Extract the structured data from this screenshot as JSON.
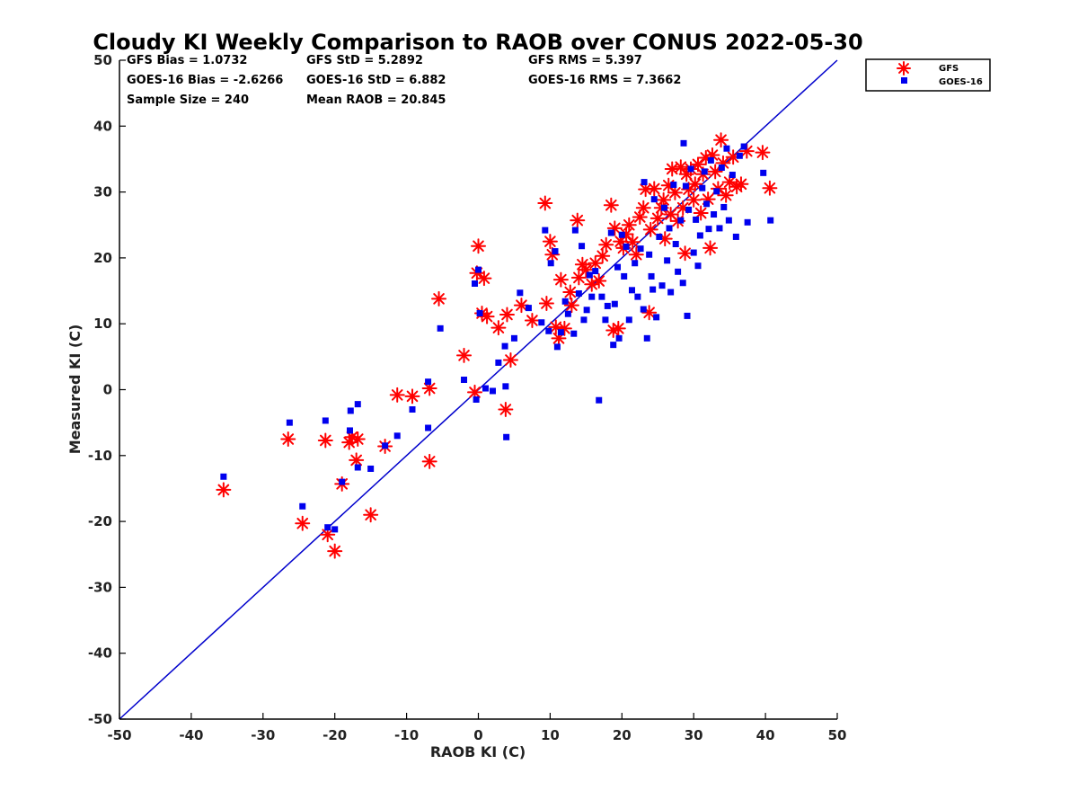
{
  "chart_data": {
    "type": "scatter",
    "title": "Cloudy KI Weekly Comparison to RAOB over CONUS 2022-05-30",
    "xlabel": "RAOB KI (C)",
    "ylabel": "Measured KI (C)",
    "xlim": [
      -50,
      50
    ],
    "ylim": [
      -50,
      50
    ],
    "xticks": [
      "-50",
      "-40",
      "-30",
      "-20",
      "-10",
      "0",
      "10",
      "20",
      "30",
      "40",
      "50"
    ],
    "yticks": [
      "50",
      "40",
      "30",
      "20",
      "10",
      "0",
      "-10",
      "-20",
      "-30",
      "-40",
      "-50"
    ],
    "grid": false,
    "legend_position": "top-right-outside",
    "reference_line": {
      "from": [
        -50,
        -50
      ],
      "to": [
        50,
        50
      ],
      "color": "#0000cc"
    },
    "stats": {
      "gfs_bias": "GFS Bias = 1.0732",
      "goes_bias": "GOES-16 Bias = -2.6266",
      "sample_size": "Sample Size = 240",
      "gfs_std": "GFS StD = 5.2892",
      "goes_std": "GOES-16 StD = 6.882",
      "mean_raob": "Mean RAOB = 20.845",
      "gfs_rms": "GFS RMS = 5.397",
      "goes_rms": "GOES-16 RMS = 7.3662"
    },
    "series": [
      {
        "name": "GFS",
        "marker": "asterisk",
        "color": "#ff0000",
        "points": [
          [
            -35.5,
            -15.2
          ],
          [
            -26.5,
            -7.5
          ],
          [
            -24.5,
            -20.3
          ],
          [
            -21.3,
            -7.7
          ],
          [
            -21,
            -22
          ],
          [
            -20,
            -24.5
          ],
          [
            -19,
            -14.3
          ],
          [
            -18,
            -8
          ],
          [
            -17.6,
            -7.2
          ],
          [
            -17,
            -10.7
          ],
          [
            -16.8,
            -7.5
          ],
          [
            -15,
            -19
          ],
          [
            -13,
            -8.6
          ],
          [
            -11.3,
            -0.8
          ],
          [
            -9.2,
            -1
          ],
          [
            -6.8,
            0.2
          ],
          [
            -6.8,
            -10.9
          ],
          [
            -5.5,
            13.8
          ],
          [
            -2,
            5.2
          ],
          [
            -0.5,
            -0.4
          ],
          [
            -0.2,
            17.7
          ],
          [
            0,
            21.8
          ],
          [
            0.5,
            11.6
          ],
          [
            0.8,
            16.9
          ],
          [
            1.2,
            11.1
          ],
          [
            2.8,
            9.4
          ],
          [
            3.8,
            -3
          ],
          [
            4,
            11.4
          ],
          [
            4.5,
            4.5
          ],
          [
            6,
            12.8
          ],
          [
            7.5,
            10.5
          ],
          [
            9.3,
            28.3
          ],
          [
            9.5,
            13.1
          ],
          [
            10,
            22.5
          ],
          [
            10.3,
            20.5
          ],
          [
            10.8,
            9.5
          ],
          [
            11.2,
            7.8
          ],
          [
            11.5,
            16.7
          ],
          [
            12,
            9.3
          ],
          [
            12.8,
            14.8
          ],
          [
            13,
            12.8
          ],
          [
            13.8,
            25.7
          ],
          [
            14,
            17
          ],
          [
            14.5,
            19
          ],
          [
            15,
            18.2
          ],
          [
            15.8,
            16
          ],
          [
            16.3,
            19.2
          ],
          [
            16.8,
            16.5
          ],
          [
            17.3,
            20.3
          ],
          [
            17.8,
            22
          ],
          [
            18.5,
            28
          ],
          [
            18.8,
            9
          ],
          [
            19,
            24.5
          ],
          [
            19.5,
            9.3
          ],
          [
            19.8,
            22.5
          ],
          [
            20.2,
            21.5
          ],
          [
            20.6,
            23.6
          ],
          [
            21,
            25
          ],
          [
            21.5,
            22.4
          ],
          [
            22,
            20.5
          ],
          [
            22.5,
            26.2
          ],
          [
            23,
            27.6
          ],
          [
            23.3,
            30.4
          ],
          [
            23.8,
            11.7
          ],
          [
            24,
            24.3
          ],
          [
            24.5,
            30.5
          ],
          [
            25,
            26
          ],
          [
            25.5,
            27.6
          ],
          [
            25.8,
            28.8
          ],
          [
            26,
            22.9
          ],
          [
            26.5,
            31
          ],
          [
            26.8,
            26.6
          ],
          [
            27,
            33.5
          ],
          [
            27.4,
            29.9
          ],
          [
            27.8,
            25.6
          ],
          [
            28.2,
            33.8
          ],
          [
            28.5,
            27.6
          ],
          [
            28.8,
            20.7
          ],
          [
            29,
            32.7
          ],
          [
            29.3,
            30.4
          ],
          [
            29.6,
            33.5
          ],
          [
            30,
            28.8
          ],
          [
            30.2,
            31.2
          ],
          [
            30.6,
            34.2
          ],
          [
            31,
            26.8
          ],
          [
            31.3,
            32.7
          ],
          [
            31.7,
            35.2
          ],
          [
            32,
            28.9
          ],
          [
            32.3,
            21.5
          ],
          [
            32.6,
            35.6
          ],
          [
            33,
            33.1
          ],
          [
            33.4,
            30.5
          ],
          [
            33.8,
            37.9
          ],
          [
            34.1,
            34.4
          ],
          [
            34.5,
            29.5
          ],
          [
            35,
            31.5
          ],
          [
            35.5,
            35.3
          ],
          [
            36,
            30.8
          ],
          [
            36.6,
            31.2
          ],
          [
            37.4,
            36.2
          ],
          [
            39.6,
            36
          ],
          [
            40.6,
            30.6
          ]
        ]
      },
      {
        "name": "GOES-16",
        "marker": "square",
        "color": "#0000ee",
        "points": [
          [
            -35.5,
            -13.2
          ],
          [
            -26.3,
            -5
          ],
          [
            -24.5,
            -17.7
          ],
          [
            -21.3,
            -4.7
          ],
          [
            -21,
            -20.9
          ],
          [
            -20,
            -21.2
          ],
          [
            -19,
            -14
          ],
          [
            -17.9,
            -6.2
          ],
          [
            -17.8,
            -3.2
          ],
          [
            -16.8,
            -2.2
          ],
          [
            -16.8,
            -11.8
          ],
          [
            -15,
            -12
          ],
          [
            -13,
            -8.5
          ],
          [
            -11.3,
            -7
          ],
          [
            -9.2,
            -3
          ],
          [
            -7,
            1.2
          ],
          [
            -7,
            -5.8
          ],
          [
            -5.3,
            9.3
          ],
          [
            -2,
            1.5
          ],
          [
            -0.5,
            16.1
          ],
          [
            -0.3,
            -1.5
          ],
          [
            0,
            18.2
          ],
          [
            0.2,
            11.6
          ],
          [
            1,
            0.2
          ],
          [
            2,
            -0.2
          ],
          [
            2.8,
            4.1
          ],
          [
            3.7,
            6.6
          ],
          [
            3.8,
            0.5
          ],
          [
            3.9,
            -7.2
          ],
          [
            5,
            7.8
          ],
          [
            5.8,
            14.7
          ],
          [
            7,
            12.4
          ],
          [
            8.8,
            10.2
          ],
          [
            9.3,
            24.2
          ],
          [
            9.8,
            8.9
          ],
          [
            10.1,
            19.2
          ],
          [
            10.7,
            21
          ],
          [
            11,
            6.5
          ],
          [
            11.5,
            8.7
          ],
          [
            12.1,
            13.4
          ],
          [
            12.5,
            11.5
          ],
          [
            13.3,
            8.5
          ],
          [
            13.5,
            24.2
          ],
          [
            14,
            14.6
          ],
          [
            14.4,
            21.8
          ],
          [
            14.7,
            10.6
          ],
          [
            15.1,
            12.1
          ],
          [
            15.5,
            17.4
          ],
          [
            15.8,
            14.1
          ],
          [
            16.3,
            18
          ],
          [
            16.8,
            -1.6
          ],
          [
            17.2,
            14.1
          ],
          [
            17.7,
            10.6
          ],
          [
            18,
            12.7
          ],
          [
            18.5,
            23.8
          ],
          [
            18.8,
            6.8
          ],
          [
            19,
            13
          ],
          [
            19.4,
            18.6
          ],
          [
            19.6,
            7.8
          ],
          [
            20,
            23.5
          ],
          [
            20.3,
            17.2
          ],
          [
            20.6,
            21.7
          ],
          [
            21,
            10.6
          ],
          [
            21.4,
            15.1
          ],
          [
            21.8,
            19.2
          ],
          [
            22.2,
            14.1
          ],
          [
            22.6,
            21.4
          ],
          [
            23,
            12.2
          ],
          [
            23.1,
            31.5
          ],
          [
            23.5,
            7.8
          ],
          [
            23.8,
            20.5
          ],
          [
            24.1,
            17.2
          ],
          [
            24.5,
            28.9
          ],
          [
            24.8,
            11
          ],
          [
            25.2,
            23.2
          ],
          [
            25.6,
            15.8
          ],
          [
            25.9,
            27.6
          ],
          [
            26.3,
            19.6
          ],
          [
            26.6,
            24.5
          ],
          [
            26.8,
            14.8
          ],
          [
            27.2,
            31.1
          ],
          [
            27.5,
            22.1
          ],
          [
            27.8,
            17.9
          ],
          [
            28.2,
            25.7
          ],
          [
            28.5,
            16.2
          ],
          [
            28.6,
            37.4
          ],
          [
            28.9,
            30.9
          ],
          [
            29.1,
            11.2
          ],
          [
            29.3,
            27.3
          ],
          [
            29.6,
            33.5
          ],
          [
            30,
            20.8
          ],
          [
            30.3,
            25.8
          ],
          [
            30.6,
            18.8
          ],
          [
            30.9,
            23.4
          ],
          [
            31.2,
            30.6
          ],
          [
            31.5,
            33.1
          ],
          [
            31.8,
            28.2
          ],
          [
            32.1,
            24.4
          ],
          [
            32.4,
            34.8
          ],
          [
            32.8,
            26.6
          ],
          [
            33.2,
            30.1
          ],
          [
            33.6,
            24.5
          ],
          [
            33.9,
            33.7
          ],
          [
            34.2,
            27.7
          ],
          [
            34.6,
            36.6
          ],
          [
            34.9,
            25.7
          ],
          [
            35.4,
            32.6
          ],
          [
            35.9,
            23.2
          ],
          [
            36.4,
            35.5
          ],
          [
            37,
            36.9
          ],
          [
            37.5,
            25.4
          ],
          [
            39.7,
            32.9
          ],
          [
            40.7,
            25.7
          ],
          [
            24.3,
            15.2
          ]
        ]
      }
    ]
  }
}
